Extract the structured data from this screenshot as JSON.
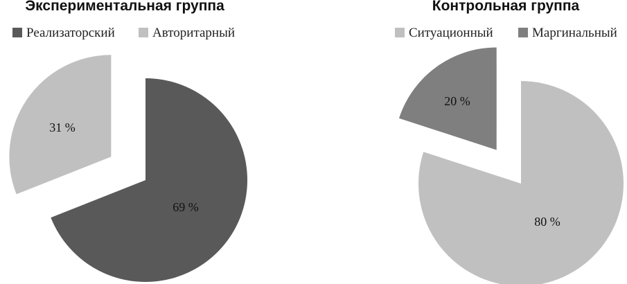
{
  "chart_data": [
    {
      "type": "pie",
      "title": "Экспериментальная группа",
      "series": [
        {
          "name": "Реализаторский",
          "value": 69,
          "label": "69 %",
          "color": "#595959"
        },
        {
          "name": "Авторитарный",
          "value": 31,
          "label": "31 %",
          "color": "#c0c0c0"
        }
      ],
      "exploded": true,
      "legend": "top"
    },
    {
      "type": "pie",
      "title": "Контрольная группа",
      "series": [
        {
          "name": "Ситуационный",
          "value": 80,
          "label": "80 %",
          "color": "#c0c0c0"
        },
        {
          "name": "Маргинальный",
          "value": 20,
          "label": "20 %",
          "color": "#7f7f7f"
        }
      ],
      "exploded": true,
      "legend": "top"
    }
  ]
}
